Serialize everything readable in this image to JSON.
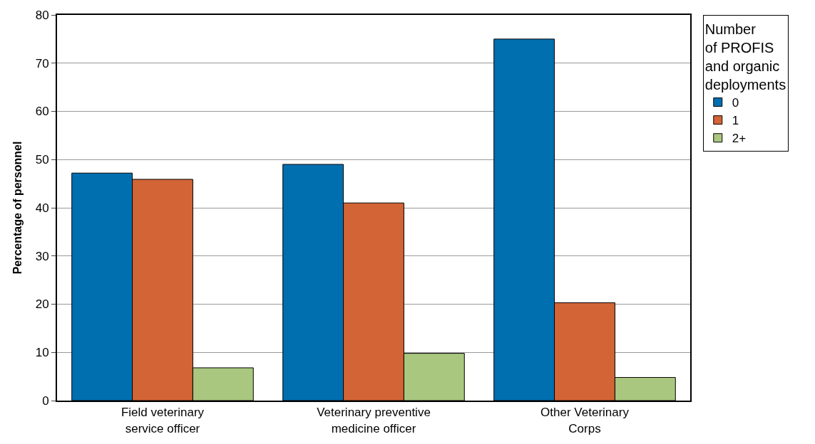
{
  "chart_data": {
    "type": "bar",
    "ylabel": "Percentage of personnel",
    "legend_title": "Number\nof PROFIS\nand organic\ndeployments",
    "categories": [
      "Field veterinary\nservice officer",
      "Veterinary preventive\nmedicine officer",
      "Other Veterinary\nCorps"
    ],
    "series": [
      {
        "name": "0",
        "color": "#006fb0",
        "values": [
          47.2,
          49.0,
          75.0
        ]
      },
      {
        "name": "1",
        "color": "#d26435",
        "values": [
          45.9,
          41.0,
          20.3
        ]
      },
      {
        "name": "2+",
        "color": "#a9c77f",
        "values": [
          6.8,
          9.8,
          4.8
        ]
      }
    ],
    "ylim": [
      0,
      80
    ],
    "yticks": [
      0,
      10,
      20,
      30,
      40,
      50,
      60,
      70,
      80
    ],
    "grid": "y",
    "legend": "top right"
  }
}
